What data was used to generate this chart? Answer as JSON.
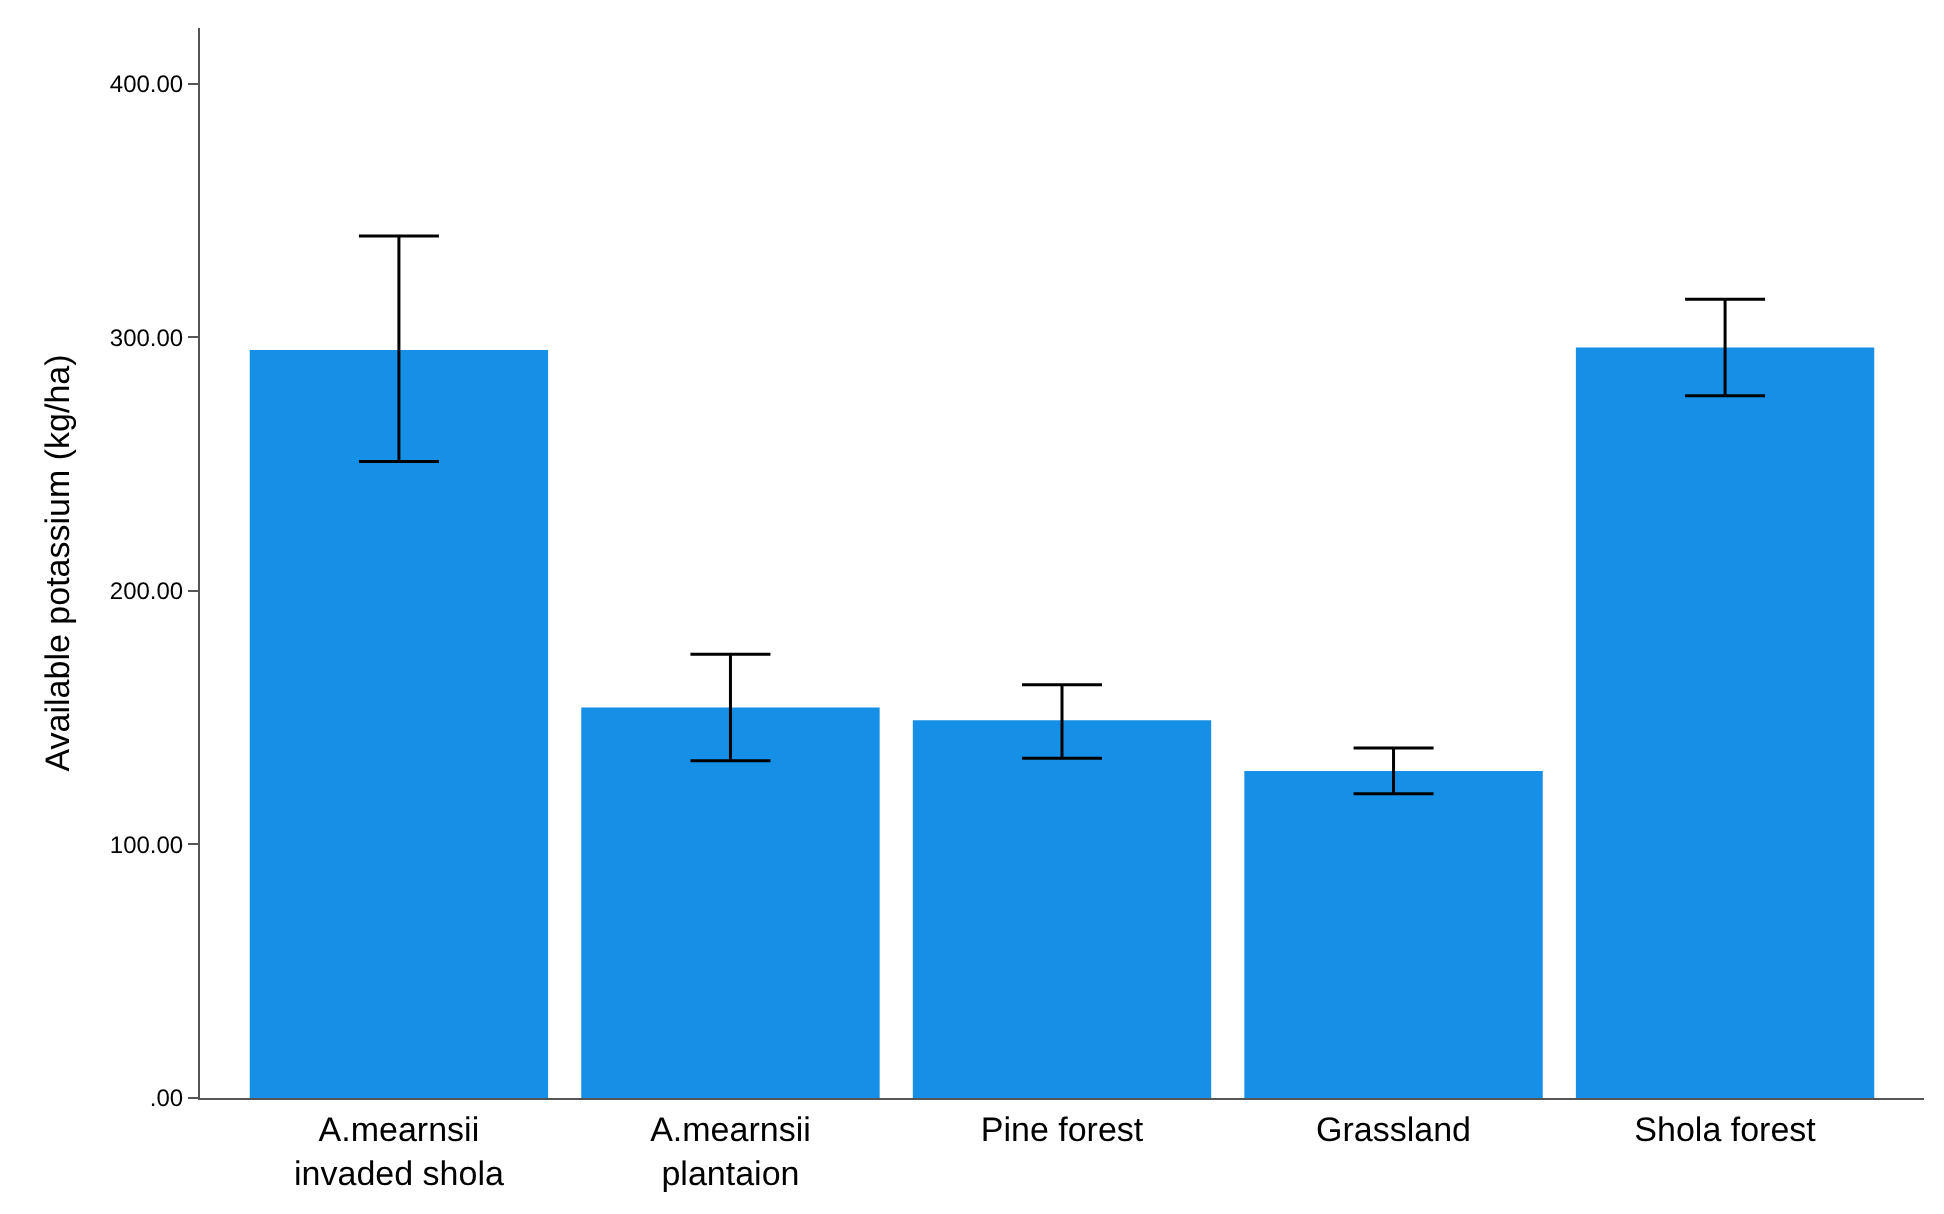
{
  "chart_data": {
    "type": "bar",
    "ylabel": "Available potassium (kg/ha)",
    "categories": [
      "A.mearnsii invaded shola",
      "A.mearnsii plantaion",
      "Pine forest",
      "Grassland",
      "Shola forest"
    ],
    "values": [
      295,
      154,
      149,
      129,
      296
    ],
    "errors": [
      [
        251,
        340
      ],
      [
        133,
        175
      ],
      [
        134,
        163
      ],
      [
        120,
        138
      ],
      [
        277,
        315
      ]
    ],
    "color": "#1590e6",
    "ylim": [
      0,
      422
    ],
    "yticks": [
      {
        "value": 0,
        "label": ".00"
      },
      {
        "value": 100,
        "label": "100.00"
      },
      {
        "value": 200,
        "label": "200.00"
      },
      {
        "value": 300,
        "label": "300.00"
      },
      {
        "value": 400,
        "label": "400.00"
      }
    ]
  }
}
